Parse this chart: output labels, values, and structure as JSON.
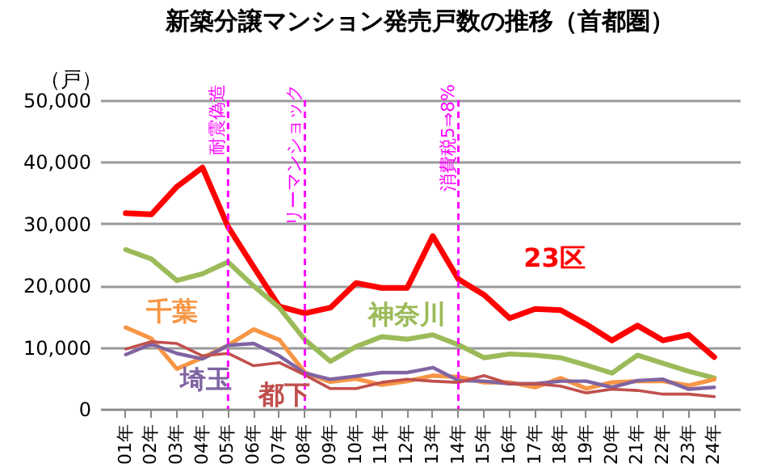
{
  "chart_data": {
    "type": "line",
    "title": "新築分譲マンション発売戸数の推移（首都圏）",
    "ylabel": "（戸）",
    "categories": [
      "01年",
      "02年",
      "03年",
      "04年",
      "05年",
      "06年",
      "07年",
      "08年",
      "09年",
      "10年",
      "11年",
      "12年",
      "13年",
      "14年",
      "15年",
      "16年",
      "17年",
      "18年",
      "19年",
      "20年",
      "21年",
      "22年",
      "23年",
      "24年"
    ],
    "series": [
      {
        "name": "23区",
        "color": "#ff0000",
        "values": [
          31700,
          31500,
          36000,
          39100,
          29500,
          23000,
          16600,
          15500,
          16400,
          20400,
          19600,
          19600,
          28000,
          21000,
          18500,
          14700,
          16200,
          16000,
          13700,
          11100,
          13500,
          11100,
          12000,
          8400
        ]
      },
      {
        "name": "神奈川",
        "color": "#9bbb59",
        "values": [
          25800,
          24300,
          20800,
          21900,
          23800,
          19900,
          16400,
          11200,
          7700,
          10100,
          11700,
          11300,
          12000,
          10400,
          8300,
          8900,
          8700,
          8300,
          7100,
          5800,
          8700,
          7400,
          6100,
          5000
        ]
      },
      {
        "name": "千葉",
        "color": "#f79646",
        "values": [
          13200,
          11400,
          6500,
          8300,
          10300,
          12900,
          11200,
          5900,
          4400,
          4900,
          3900,
          4500,
          5400,
          5200,
          4300,
          4300,
          3500,
          5000,
          3300,
          4300,
          4500,
          4500,
          3800,
          4800
        ]
      },
      {
        "name": "埼玉",
        "color": "#8064a2",
        "values": [
          8800,
          10500,
          9000,
          8100,
          10300,
          10600,
          8600,
          5800,
          4800,
          5300,
          5900,
          5900,
          6700,
          4600,
          4500,
          4100,
          4100,
          4500,
          4500,
          3500,
          4600,
          4800,
          3200,
          3500
        ]
      },
      {
        "name": "都下",
        "color": "#c0504d",
        "values": [
          9700,
          10900,
          10600,
          8600,
          9000,
          7000,
          7500,
          5500,
          3300,
          3300,
          4300,
          4800,
          4500,
          4300,
          5400,
          4100,
          4100,
          3700,
          2600,
          3200,
          3000,
          2400,
          2400,
          2000
        ]
      }
    ],
    "ylim": [
      0,
      50000
    ],
    "yticks": [
      0,
      {
        "value": 10000,
        "label": "10,000"
      },
      {
        "value": 20000,
        "label": "20,000"
      },
      {
        "value": 30000,
        "label": "30,000"
      },
      {
        "value": 40000,
        "label": "40,000"
      },
      {
        "value": 50000,
        "label": "50,000"
      }
    ],
    "grid": "y",
    "ref_lines": [
      {
        "axis": "x",
        "value": "05年",
        "label": "耐震偽造",
        "color": "#ff00ff",
        "line_style": "dashed"
      },
      {
        "axis": "x",
        "value": "08年",
        "label": "リーマンショック",
        "color": "#ff00ff",
        "line_style": "dashed"
      },
      {
        "axis": "x",
        "value": "14年",
        "label": "消費税5⇒8%",
        "color": "#ff00ff",
        "line_style": "dashed"
      }
    ],
    "marker": "none",
    "line_style": "solid",
    "legend": false
  }
}
